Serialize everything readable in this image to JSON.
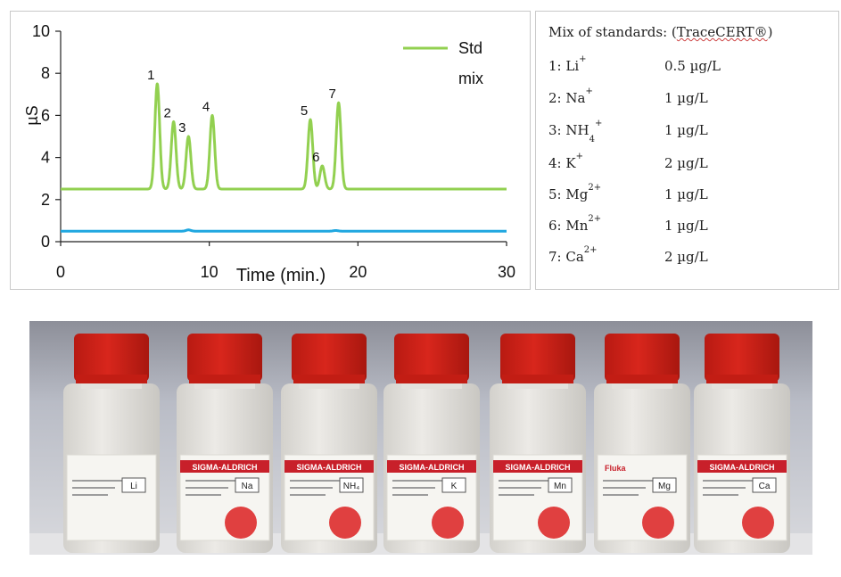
{
  "chart_data": {
    "type": "line",
    "xlabel": "Time (min.)",
    "ylabel": "µS",
    "xlim": [
      0,
      30
    ],
    "ylim": [
      0,
      10
    ],
    "x_ticks": [
      "0",
      "10",
      "20",
      "30"
    ],
    "y_ticks": [
      "0",
      "2",
      "4",
      "6",
      "8",
      "10"
    ],
    "legend_position": "top-right",
    "series": [
      {
        "name": "Std mix",
        "color": "#92d050",
        "baseline": 2.5,
        "peaks": [
          {
            "label": "1",
            "time": 6.5,
            "height": 7.5
          },
          {
            "label": "2",
            "time": 7.6,
            "height": 5.7
          },
          {
            "label": "3",
            "time": 8.6,
            "height": 5.0
          },
          {
            "label": "4",
            "time": 10.2,
            "height": 6.0
          },
          {
            "label": "5",
            "time": 16.8,
            "height": 5.8
          },
          {
            "label": "6",
            "time": 17.6,
            "height": 3.6
          },
          {
            "label": "7",
            "time": 18.7,
            "height": 6.6
          }
        ]
      },
      {
        "name": "",
        "color": "#1fa7e0",
        "baseline": 0.5,
        "peaks": []
      }
    ]
  },
  "legend_panel": {
    "title_prefix": "Mix of standards: (",
    "title_brand": "TraceCERT®",
    "title_suffix": ")",
    "rows": [
      {
        "num": "1: Li",
        "sup": "+",
        "sub": "",
        "conc": "0.5 µg/L"
      },
      {
        "num": "2: Na",
        "sup": "+",
        "sub": "",
        "conc": "1 µg/L"
      },
      {
        "num": "3: NH",
        "sup": "+",
        "sub": "4",
        "conc": "1 µg/L"
      },
      {
        "num": "4: K",
        "sup": "+",
        "sub": "",
        "conc": "2 µg/L"
      },
      {
        "num": "5: Mg",
        "sup": "2+",
        "sub": "",
        "conc": "1 µg/L"
      },
      {
        "num": "6: Mn",
        "sup": "2+",
        "sub": "",
        "conc": "1 µg/L"
      },
      {
        "num": "7: Ca",
        "sup": "2+",
        "sub": "",
        "conc": "2 µg/L"
      }
    ]
  },
  "photo": {
    "bottles": [
      {
        "brand": "",
        "label": "Li"
      },
      {
        "brand": "SIGMA-ALDRICH",
        "label": "Na"
      },
      {
        "brand": "SIGMA-ALDRICH",
        "label": "NH₄"
      },
      {
        "brand": "SIGMA-ALDRICH",
        "label": "K"
      },
      {
        "brand": "SIGMA-ALDRICH",
        "label": "Mn"
      },
      {
        "brand": "Fluka",
        "label": "Mg"
      },
      {
        "brand": "SIGMA-ALDRICH",
        "label": "Ca"
      }
    ],
    "colors": {
      "cap": "#d8261c",
      "dot": "#e04040",
      "brand_band": "#c8202a",
      "bottle": "#eceae6"
    }
  }
}
